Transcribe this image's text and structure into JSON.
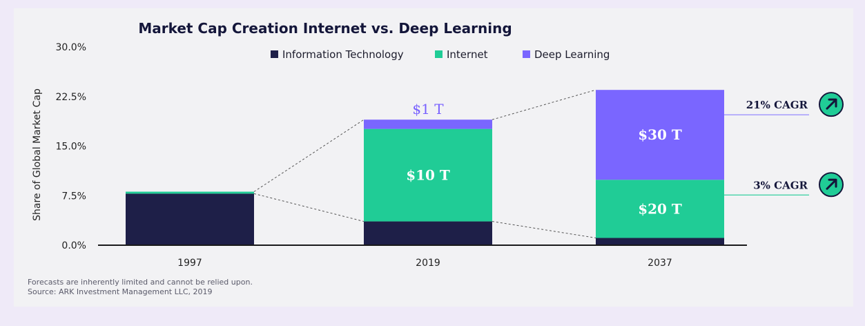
{
  "chart_data": {
    "type": "bar",
    "stacked": true,
    "title": "Market Cap Creation Internet vs. Deep Learning",
    "ylabel": "Share of Global Market Cap",
    "xlabel": "",
    "ylim": [
      0,
      30
    ],
    "yticks": [
      "0.0%",
      "7.5%",
      "15.0%",
      "22.5%",
      "30.0%"
    ],
    "ytick_values": [
      0,
      7.5,
      15,
      22.5,
      30
    ],
    "categories": [
      "1997",
      "2019",
      "2037"
    ],
    "legend_position": "top",
    "series": [
      {
        "name": "Information Technology",
        "color": "#1e1f48",
        "values": [
          7.8,
          3.6,
          1.1
        ]
      },
      {
        "name": "Internet",
        "color": "#20cc96",
        "values": [
          0.3,
          14.0,
          8.8
        ]
      },
      {
        "name": "Deep Learning",
        "color": "#7a66ff",
        "values": [
          0.0,
          1.4,
          13.6
        ]
      }
    ],
    "annotations": {
      "segment_labels": [
        {
          "category": "2019",
          "series": "Internet",
          "text": "$10 T"
        },
        {
          "category": "2019",
          "series": "Deep Learning",
          "text": "$1 T"
        },
        {
          "category": "2037",
          "series": "Internet",
          "text": "$20 T"
        },
        {
          "category": "2037",
          "series": "Deep Learning",
          "text": "$30 T"
        }
      ],
      "cagr": [
        {
          "series": "Deep Learning",
          "text": "21% CAGR",
          "line_color": "#8a7cff"
        },
        {
          "series": "Internet",
          "text": "3% CAGR",
          "line_color": "#20cc96"
        }
      ]
    },
    "grid": false
  },
  "footnotes": [
    "Forecasts are inherently limited and cannot be relied upon.",
    "Source: ARK Investment Management LLC, 2019"
  ],
  "colors": {
    "arrow_badge": "#20cc96",
    "connector": "#555555"
  },
  "icons": {
    "cagr_badge": "arrow-up-right-icon"
  }
}
